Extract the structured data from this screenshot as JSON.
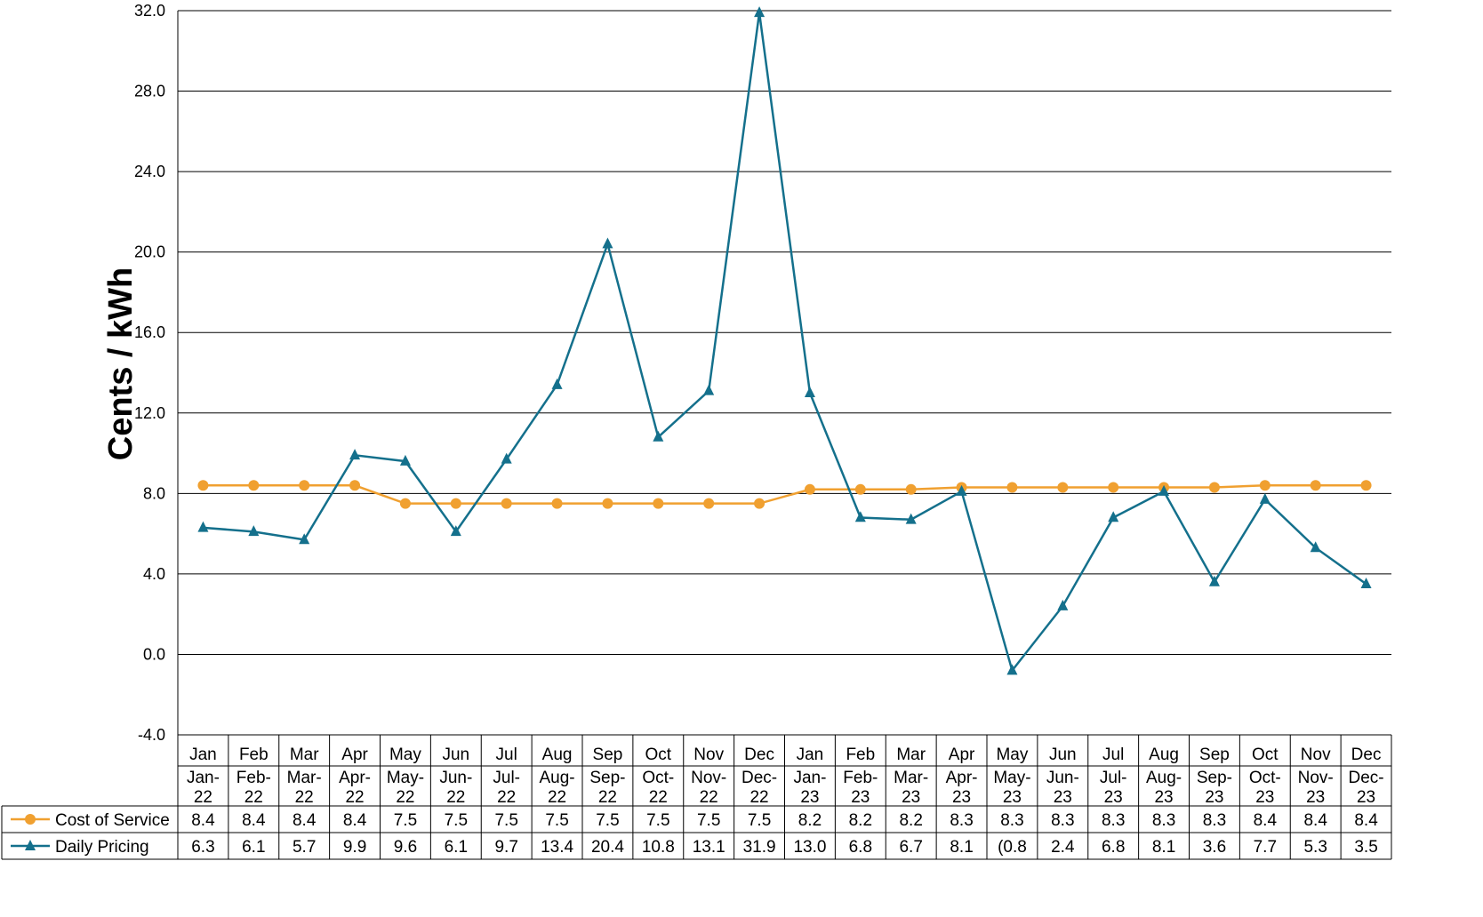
{
  "chart_data": {
    "type": "line",
    "ylabel": "Cents / kWh",
    "ylim": [
      -4.0,
      32.0
    ],
    "yticks": [
      "32.0",
      "28.0",
      "24.0",
      "20.0",
      "16.0",
      "12.0",
      "8.0",
      "4.0",
      "0.0",
      "-4.0"
    ],
    "categories": [
      "Jan",
      "Feb",
      "Mar",
      "Apr",
      "May",
      "Jun",
      "Jul",
      "Aug",
      "Sep",
      "Oct",
      "Nov",
      "Dec",
      "Jan",
      "Feb",
      "Mar",
      "Apr",
      "May",
      "Jun",
      "Jul",
      "Aug",
      "Sep",
      "Oct",
      "Nov",
      "Dec"
    ],
    "periods": [
      [
        "Jan-",
        "22"
      ],
      [
        "Feb-",
        "22"
      ],
      [
        "Mar-",
        "22"
      ],
      [
        "Apr-",
        "22"
      ],
      [
        "May-",
        "22"
      ],
      [
        "Jun-",
        "22"
      ],
      [
        "Jul-",
        "22"
      ],
      [
        "Aug-",
        "22"
      ],
      [
        "Sep-",
        "22"
      ],
      [
        "Oct-",
        "22"
      ],
      [
        "Nov-",
        "22"
      ],
      [
        "Dec-",
        "22"
      ],
      [
        "Jan-",
        "23"
      ],
      [
        "Feb-",
        "23"
      ],
      [
        "Mar-",
        "23"
      ],
      [
        "Apr-",
        "23"
      ],
      [
        "May-",
        "23"
      ],
      [
        "Jun-",
        "23"
      ],
      [
        "Jul-",
        "23"
      ],
      [
        "Aug-",
        "23"
      ],
      [
        "Sep-",
        "23"
      ],
      [
        "Oct-",
        "23"
      ],
      [
        "Nov-",
        "23"
      ],
      [
        "Dec-",
        "23"
      ]
    ],
    "grid": true,
    "legend": "data-table-left",
    "series": [
      {
        "name": "Cost of Service",
        "color": "#F0A030",
        "marker": "circle",
        "values": [
          8.4,
          8.4,
          8.4,
          8.4,
          7.5,
          7.5,
          7.5,
          7.5,
          7.5,
          7.5,
          7.5,
          7.5,
          8.2,
          8.2,
          8.2,
          8.3,
          8.3,
          8.3,
          8.3,
          8.3,
          8.3,
          8.4,
          8.4,
          8.4
        ],
        "labels": [
          "8.4",
          "8.4",
          "8.4",
          "8.4",
          "7.5",
          "7.5",
          "7.5",
          "7.5",
          "7.5",
          "7.5",
          "7.5",
          "7.5",
          "8.2",
          "8.2",
          "8.2",
          "8.3",
          "8.3",
          "8.3",
          "8.3",
          "8.3",
          "8.3",
          "8.4",
          "8.4",
          "8.4"
        ]
      },
      {
        "name": "Daily Pricing",
        "color": "#14708C",
        "marker": "triangle",
        "values": [
          6.3,
          6.1,
          5.7,
          9.9,
          9.6,
          6.1,
          9.7,
          13.4,
          20.4,
          10.8,
          13.1,
          31.9,
          13.0,
          6.8,
          6.7,
          8.1,
          -0.8,
          2.4,
          6.8,
          8.1,
          3.6,
          7.7,
          5.3,
          3.5
        ],
        "labels": [
          "6.3",
          "6.1",
          "5.7",
          "9.9",
          "9.6",
          "6.1",
          "9.7",
          "13.4",
          "20.4",
          "10.8",
          "13.1",
          "31.9",
          "13.0",
          "6.8",
          "6.7",
          "8.1",
          "(0.8",
          "2.4",
          "6.8",
          "8.1",
          "3.6",
          "7.7",
          "5.3",
          "3.5"
        ]
      }
    ]
  }
}
